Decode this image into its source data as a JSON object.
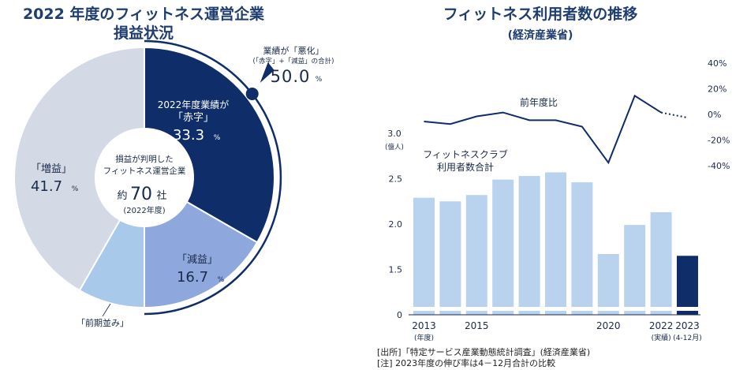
{
  "left": {
    "title_line1": "2022 年度のフィットネス運営企業",
    "title_line2": "損益状況",
    "center": {
      "line1": "損益が判明した",
      "line2": "フィットネス運営企業",
      "count_prefix": "約",
      "count_value": "70",
      "count_suffix": "社",
      "year": "(2022年度)"
    },
    "callout": {
      "line1": "業績が「悪化」",
      "line2": "(「赤字」+「減益」の合計)",
      "value": "50.0",
      "unit": "%"
    },
    "colors": {
      "red": "#0f2d68",
      "decline": "#8ea7dc",
      "flat": "#a9c9ea",
      "increase": "#d3dae6",
      "arc": "#0f2d68"
    }
  },
  "right": {
    "title": "フィットネス利用者数の推移",
    "subtitle": "(経済産業省)",
    "bar_label_line1": "フィットネスクラブ",
    "bar_label_line2": "利用者数合計",
    "line_label": "前年度比",
    "y_unit_line1": "3.0",
    "y_unit_line2": "(億人)",
    "colors": {
      "bar": "#b9d3ee",
      "bar_last": "#0f2d68",
      "line": "#0f2d68"
    }
  },
  "footnotes": {
    "source": "[出所]「特定サービス産業動態統計調査」(経済産業省)",
    "note": "[注] 2023年度の伸び率は4－12月合計の比較"
  },
  "chart_data": [
    {
      "type": "pie",
      "title": "2022 年度のフィットネス運営企業 損益状況",
      "slices": [
        {
          "label_line1": "2022年度業績が",
          "label_line2": "「赤字」",
          "value": 33.3
        },
        {
          "label_line1": "",
          "label_line2": "「減益」",
          "value": 16.7
        },
        {
          "label_line1": "",
          "label_line2": "「前期並み」",
          "value": 8.3
        },
        {
          "label_line1": "",
          "label_line2": "「増益」",
          "value": 41.7
        }
      ],
      "unit": "%"
    },
    {
      "type": "bar",
      "title": "フィットネス利用者数の推移",
      "x": [
        "2013",
        "2014",
        "2015",
        "2016",
        "2017",
        "2018",
        "2019",
        "2020",
        "2021",
        "2022",
        "2023"
      ],
      "x_tick_labels": [
        {
          "text": "2013",
          "sub": "(年度)",
          "index": 0
        },
        {
          "text": "2015",
          "sub": "",
          "index": 2
        },
        {
          "text": "2020",
          "sub": "",
          "index": 7
        },
        {
          "text": "2022",
          "sub": "(実績)",
          "index": 9
        },
        {
          "text": "2023",
          "sub": "(4-12月)",
          "index": 10
        }
      ],
      "series": [
        {
          "name": "フィットネスクラブ利用者数合計",
          "values": [
            2.29,
            2.25,
            2.32,
            2.49,
            2.53,
            2.57,
            2.46,
            1.67,
            1.99,
            2.13,
            1.65
          ]
        },
        {
          "name": "前年度比",
          "values": [
            0,
            -2,
            4,
            7,
            1,
            1,
            -4,
            -32,
            20,
            7,
            3
          ],
          "projected_from_index": 9
        }
      ],
      "ylim": [
        0,
        3.0
      ],
      "y_ticks": [
        "0",
        "1.5",
        "2.0",
        "2.5"
      ],
      "y_ticks_values": [
        0,
        1.5,
        2.0,
        2.5
      ],
      "y2_ticks": [
        "40%",
        "20%",
        "0%",
        "-20%",
        "-40%"
      ],
      "y2_ticks_values": [
        40,
        20,
        0,
        -20,
        -40
      ]
    }
  ]
}
